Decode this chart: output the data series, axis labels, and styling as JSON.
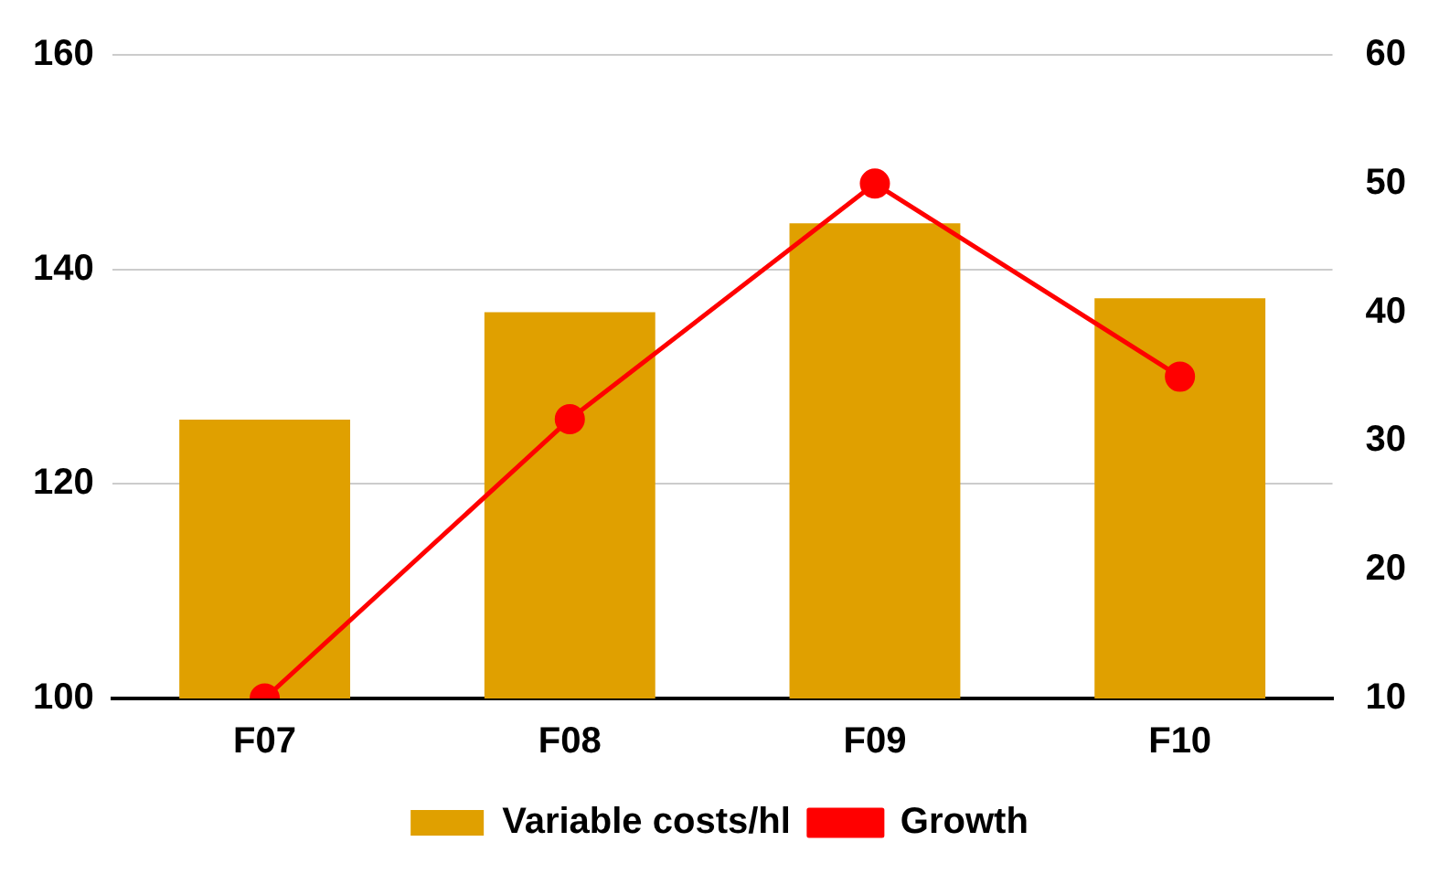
{
  "chart_data": {
    "type": "bar",
    "categories": [
      "F07",
      "F08",
      "F09",
      "F10"
    ],
    "series": [
      {
        "name": "Variable costs/hl",
        "color": "#e0a000",
        "values": [
          126,
          136,
          144.3,
          137.3
        ]
      },
      {
        "name": "Growth",
        "type": "line",
        "axis": "y2",
        "color": "#ff0000",
        "values": [
          10,
          31.7,
          50,
          35
        ]
      }
    ],
    "ylim": [
      100,
      160
    ],
    "yticks": [
      100,
      120,
      140,
      160
    ],
    "y2lim": [
      10,
      60
    ],
    "y2ticks": [
      10,
      20,
      30,
      40,
      50,
      60
    ],
    "grid": "y",
    "legend": "bottom",
    "marker": "circle"
  }
}
